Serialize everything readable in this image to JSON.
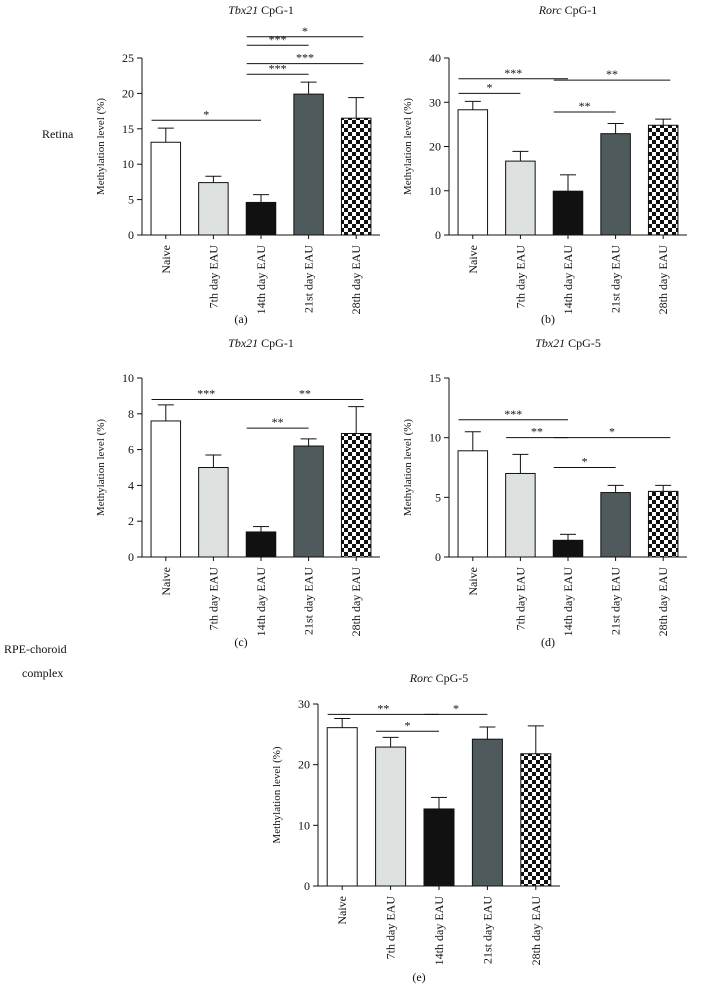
{
  "row_labels": {
    "retina": "Retina",
    "rpe_line1": "RPE-choroid",
    "rpe_line2": "complex"
  },
  "y_label": "Methylation level (%)",
  "categories": [
    "Naive",
    "7th day EAU",
    "14th day EAU",
    "21st day EAU",
    "28th day EAU"
  ],
  "chart_data": [
    {
      "type": "bar",
      "panel_label": "(a)",
      "title_gene": "Tbx21",
      "title_rest": " CpG-1",
      "categories": [
        "Naive",
        "7th day EAU",
        "14th day EAU",
        "21st day EAU",
        "28th day EAU"
      ],
      "values": [
        13.1,
        7.4,
        4.6,
        19.9,
        16.5
      ],
      "errors": [
        2.0,
        0.9,
        1.1,
        1.7,
        2.9
      ],
      "ylim": [
        0,
        25
      ],
      "yticks": [
        0,
        5,
        10,
        15,
        20,
        25
      ],
      "ylabel": "Methylation level (%)",
      "sig": [
        {
          "from": 0,
          "to": 2,
          "label": "*",
          "y": 16.2
        },
        {
          "from": 2,
          "to": 4,
          "label": "*",
          "y": 28.0
        },
        {
          "from": 2,
          "to": 3,
          "label": "***",
          "y": 26.8
        },
        {
          "from": 2,
          "to": 4,
          "label": "***",
          "y": 24.2
        },
        {
          "from": 2,
          "to": 3,
          "label": "***",
          "y": 22.7
        }
      ]
    },
    {
      "type": "bar",
      "panel_label": "(b)",
      "title_gene": "Rorc",
      "title_rest": " CpG-1",
      "categories": [
        "Naive",
        "7th day EAU",
        "14th day EAU",
        "21st day EAU",
        "28th day EAU"
      ],
      "values": [
        28.3,
        16.7,
        9.9,
        22.9,
        24.8
      ],
      "errors": [
        1.9,
        2.2,
        3.7,
        2.3,
        1.4
      ],
      "ylim": [
        0,
        40
      ],
      "yticks": [
        0,
        10,
        20,
        30,
        40
      ],
      "ylabel": "Methylation level (%)",
      "sig": [
        {
          "from": 0,
          "to": 2,
          "label": "***",
          "y": 35.3
        },
        {
          "from": 0,
          "to": 1,
          "label": "*",
          "y": 32.0
        },
        {
          "from": 2,
          "to": 4,
          "label": "**",
          "y": 35.0
        },
        {
          "from": 2,
          "to": 3,
          "label": "**",
          "y": 27.8
        }
      ]
    },
    {
      "type": "bar",
      "panel_label": "(c)",
      "title_gene": "Tbx21",
      "title_rest": " CpG-1",
      "categories": [
        "Naive",
        "7th day EAU",
        "14th day EAU",
        "21st day EAU",
        "28th day EAU"
      ],
      "values": [
        7.6,
        5.0,
        1.4,
        6.2,
        6.9
      ],
      "errors": [
        0.9,
        0.7,
        0.3,
        0.4,
        1.5
      ],
      "ylim": [
        0,
        10
      ],
      "yticks": [
        0,
        2,
        4,
        6,
        8,
        10
      ],
      "ylabel": "Methylation level (%)",
      "sig": [
        {
          "from": 0,
          "to": 2,
          "label": "***",
          "y": 8.8
        },
        {
          "from": 2,
          "to": 4,
          "label": "**",
          "y": 8.8
        },
        {
          "from": 2,
          "to": 3,
          "label": "**",
          "y": 7.2
        }
      ]
    },
    {
      "type": "bar",
      "panel_label": "(d)",
      "title_gene": "Tbx21",
      "title_rest": " CpG-5",
      "categories": [
        "Naive",
        "7th day EAU",
        "14th day EAU",
        "21st day EAU",
        "28th day EAU"
      ],
      "values": [
        8.9,
        7.0,
        1.4,
        5.4,
        5.5
      ],
      "errors": [
        1.6,
        1.6,
        0.5,
        0.6,
        0.5
      ],
      "ylim": [
        0,
        15
      ],
      "yticks": [
        0,
        5,
        10,
        15
      ],
      "ylabel": "Methylation level (%)",
      "sig": [
        {
          "from": 0,
          "to": 2,
          "label": "***",
          "y": 11.5
        },
        {
          "from": 1,
          "to": 2,
          "label": "**",
          "y": 10.0
        },
        {
          "from": 2,
          "to": 4,
          "label": "*",
          "y": 10.0
        },
        {
          "from": 2,
          "to": 3,
          "label": "*",
          "y": 7.5
        }
      ]
    },
    {
      "type": "bar",
      "panel_label": "(e)",
      "title_gene": "Rorc",
      "title_rest": " CpG-5",
      "categories": [
        "Naive",
        "7th day EAU",
        "14th day EAU",
        "21st day EAU",
        "28th day EAU"
      ],
      "values": [
        26.1,
        22.9,
        12.7,
        24.2,
        21.8
      ],
      "errors": [
        1.5,
        1.6,
        1.9,
        2.0,
        4.6
      ],
      "ylim": [
        0,
        30
      ],
      "yticks": [
        0,
        10,
        20,
        30
      ],
      "ylabel": "Methylation level (%)",
      "sig": [
        {
          "from": 0,
          "to": 2,
          "label": "**",
          "y": 28.3
        },
        {
          "from": 1,
          "to": 2,
          "label": "*",
          "y": 25.5
        },
        {
          "from": 2,
          "to": 3,
          "label": "*",
          "y": 28.3
        }
      ]
    }
  ],
  "bar_fills": [
    "#ffffff",
    "#dde1df",
    "#111111",
    "#4f5a5c",
    "checker"
  ],
  "colors": {
    "axis": "#111111",
    "text": "#111111"
  }
}
